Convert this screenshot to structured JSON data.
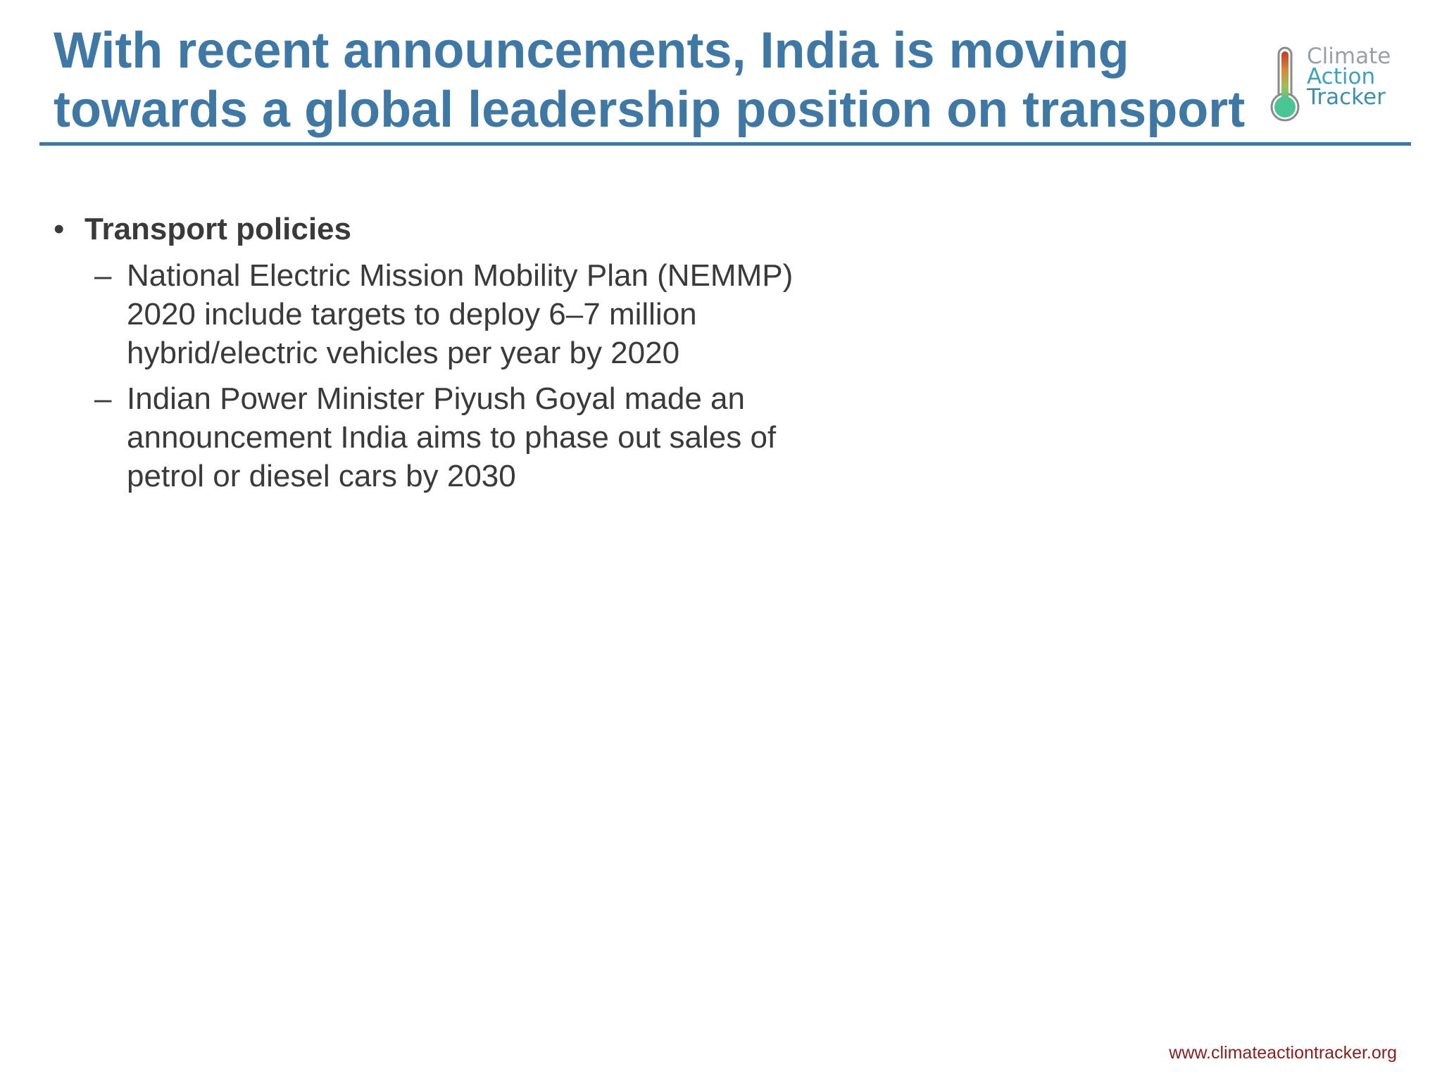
{
  "slide": {
    "title_lines": [
      "With recent announcements, India is moving",
      "towards a global leadership position on transport"
    ],
    "logo": {
      "words": [
        "Climate",
        "Action",
        "Tracker"
      ],
      "icon": "thermometer-icon"
    },
    "bullets": {
      "heading": "Transport policies",
      "marker": "•",
      "sub_marker": "–",
      "items": [
        {
          "lines": [
            "National Electric Mission Mobility Plan (NEMMP)",
            "2020 include targets to deploy 6–7 million",
            "hybrid/electric vehicles per year by 2020"
          ]
        },
        {
          "lines": [
            "Indian Power Minister Piyush Goyal made an",
            "announcement India aims to phase out sales of",
            "petrol or diesel cars by 2030"
          ]
        }
      ]
    },
    "footer": "www.climateactiontracker.org",
    "colors": {
      "title": "#3f78a5",
      "body": "#3a3a3a",
      "footer": "#8a1e1e"
    }
  }
}
